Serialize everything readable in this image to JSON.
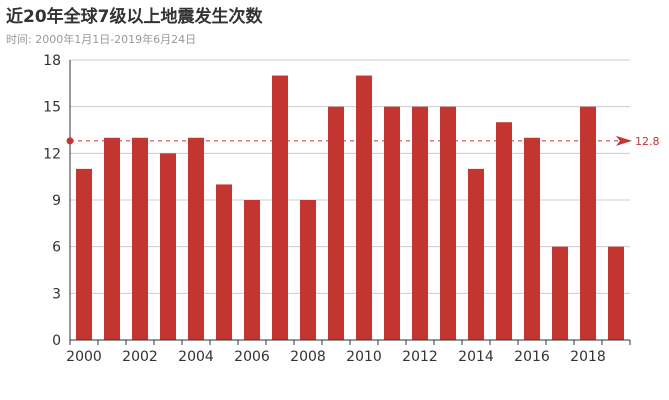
{
  "title": "近20年全球7级以上地震发生次数",
  "subtitle": "时间: 2000年1月1日-2019年6月24日",
  "colors": {
    "bar": "#c23531",
    "axis": "#333333",
    "grid": "#cccccc",
    "markline": "#c23531"
  },
  "chart_data": {
    "type": "bar",
    "categories": [
      "2000",
      "2001",
      "2002",
      "2003",
      "2004",
      "2005",
      "2006",
      "2007",
      "2008",
      "2009",
      "2010",
      "2011",
      "2012",
      "2013",
      "2014",
      "2015",
      "2016",
      "2017",
      "2018",
      "2019"
    ],
    "values": [
      11,
      13,
      13,
      12,
      13,
      10,
      9,
      17,
      9,
      15,
      17,
      15,
      15,
      15,
      11,
      14,
      13,
      6,
      15,
      6
    ],
    "xtick_labels": [
      "2000",
      "2002",
      "2004",
      "2006",
      "2008",
      "2010",
      "2012",
      "2014",
      "2016",
      "2018"
    ],
    "yticks": [
      0,
      3,
      6,
      9,
      12,
      15,
      18
    ],
    "ylim": [
      0,
      18
    ],
    "grid": true,
    "mark_line": {
      "type": "average",
      "value": 12.8,
      "label": "12.8"
    }
  }
}
